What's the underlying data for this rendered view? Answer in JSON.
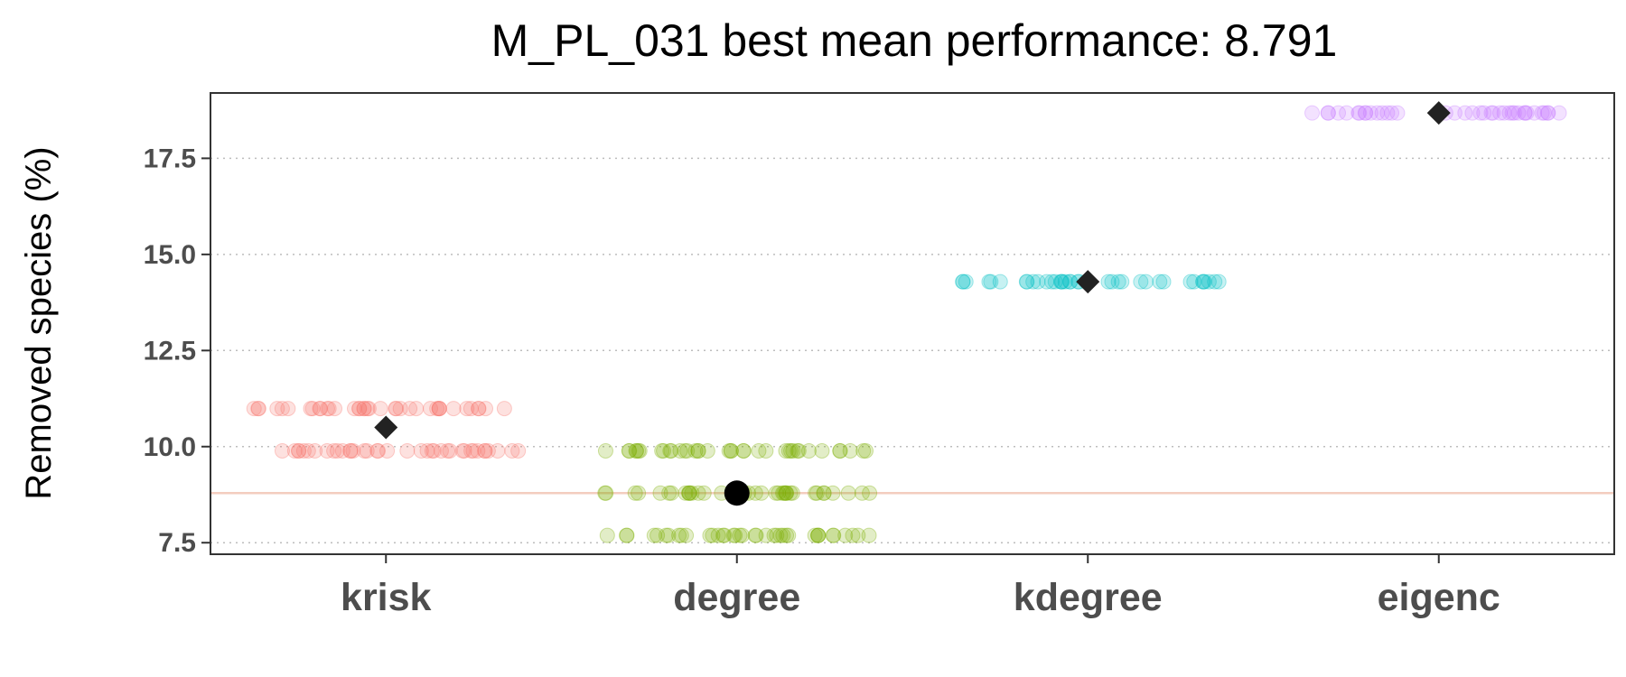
{
  "chart_data": {
    "type": "scatter",
    "title": "M_PL_031 best mean performance: 8.791",
    "xlabel": "",
    "ylabel": "Removed species (%)",
    "categories": [
      "krisk",
      "degree",
      "kdegree",
      "eigenc"
    ],
    "yticks": [
      "7.5",
      "10.0",
      "12.5",
      "15.0",
      "17.5"
    ],
    "ylim": [
      7.2,
      19.2
    ],
    "grid": "horizontal-dotted",
    "reference_line": 8.791,
    "series": [
      {
        "category": "krisk",
        "color": "#f8766d",
        "levels": [
          9.89,
          10.99
        ],
        "mean": 10.5,
        "mean_marker": "diamond"
      },
      {
        "category": "degree",
        "color": "#7cae00",
        "levels": [
          7.69,
          8.79,
          9.89
        ],
        "mean": 8.791,
        "mean_marker": "circle"
      },
      {
        "category": "kdegree",
        "color": "#00bfc4",
        "levels": [
          14.29
        ],
        "mean": 14.29,
        "mean_marker": "diamond"
      },
      {
        "category": "eigenc",
        "color": "#c77cff",
        "levels": [
          18.68
        ],
        "mean": 18.68,
        "mean_marker": "diamond"
      }
    ]
  }
}
